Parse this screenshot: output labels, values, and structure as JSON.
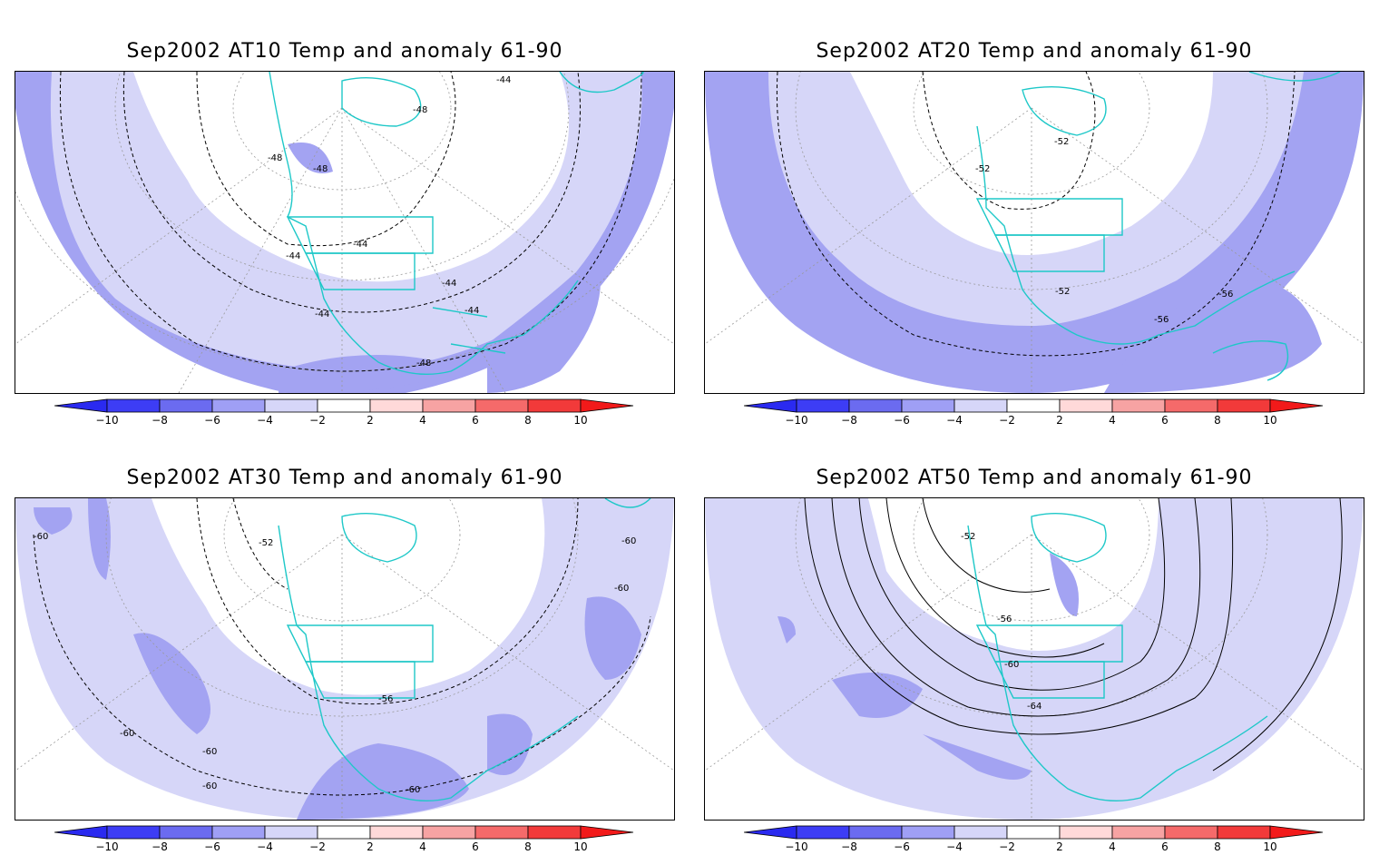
{
  "panels": [
    {
      "title": "Sep2002 AT10 Temp and anomaly 61-90",
      "contour_labels": [
        "-44",
        "-48",
        "-48",
        "-48",
        "-44",
        "-44",
        "-44",
        "-44",
        "-44",
        "-48"
      ]
    },
    {
      "title": "Sep2002 AT20 Temp and anomaly 61-90",
      "contour_labels": [
        "-52",
        "-52",
        "-52",
        "-56",
        "-56"
      ]
    },
    {
      "title": "Sep2002 AT30 Temp and anomaly 61-90",
      "contour_labels": [
        "-60",
        "-52",
        "-60",
        "-60",
        "-56",
        "-60",
        "-60",
        "-60",
        "-60"
      ]
    },
    {
      "title": "Sep2002 AT50 Temp and anomaly 61-90",
      "contour_labels": [
        "-52",
        "-56",
        "-60",
        "-64"
      ]
    }
  ],
  "colorbar": {
    "tick_labels": [
      "−10",
      "−8",
      "−6",
      "−4",
      "−2",
      "2",
      "4",
      "6",
      "8",
      "10"
    ],
    "colors": [
      "#2a2af0",
      "#3d3df5",
      "#6b6bf0",
      "#9f9ff5",
      "#d6d6f8",
      "#ffffff",
      "#ffd9d9",
      "#f7a3a3",
      "#f56a6a",
      "#f23a3a",
      "#f21a1a"
    ]
  },
  "map_colors": {
    "anomaly_light": "#d6d6f8",
    "anomaly_medium": "#a3a3f2",
    "coastline": "#1ec8c8",
    "contour": "#000000",
    "grid": "#999999"
  }
}
